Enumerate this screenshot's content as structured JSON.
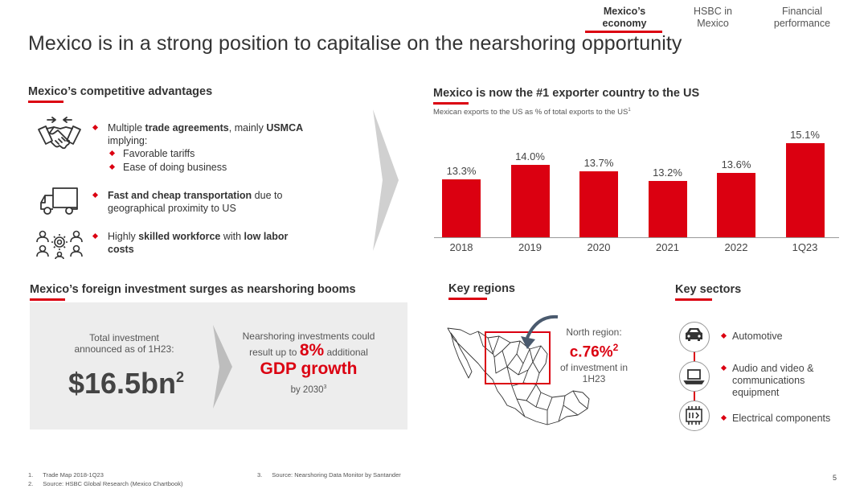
{
  "nav": {
    "items": [
      {
        "label_1": "Mexico’s",
        "label_2": "economy"
      },
      {
        "label_1": "HSBC in",
        "label_2": "Mexico"
      },
      {
        "label_1": "Financial",
        "label_2": "performance"
      }
    ],
    "active_index": 0
  },
  "title": "Mexico is in a strong position to capitalise on the nearshoring opportunity",
  "advantages": {
    "heading": "Mexico’s competitive advantages",
    "items": [
      {
        "icon": "handshake-icon",
        "line1_pre": "Multiple ",
        "line1_b1": "trade agreements",
        "line1_mid": ", mainly ",
        "line1_b2": "USMCA",
        "line2": "implying:",
        "subs": [
          "Favorable tariffs",
          "Ease of doing business"
        ]
      },
      {
        "icon": "truck-icon",
        "line1_b1": "Fast and cheap transportation",
        "line1_post": " due to",
        "line2": "geographical proximity to US"
      },
      {
        "icon": "workforce-icon",
        "line1_pre": "Highly ",
        "line1_b1": "skilled workforce",
        "line1_mid": " with ",
        "line1_b2": "low labor",
        "line2_b": "costs"
      }
    ]
  },
  "chart_section": {
    "heading": "Mexico is now the #1 exporter country to the US",
    "subtitle": "Mexican exports to the US as % of total exports to the US",
    "subtitle_sup": "1"
  },
  "chart_data": {
    "type": "bar",
    "categories": [
      "2018",
      "2019",
      "2020",
      "2021",
      "2022",
      "1Q23"
    ],
    "values": [
      13.3,
      14.0,
      13.7,
      13.2,
      13.6,
      15.1
    ],
    "value_labels": [
      "13.3%",
      "14.0%",
      "13.7%",
      "13.2%",
      "13.6%",
      "15.1%"
    ],
    "title": "Mexico is now the #1 exporter country to the US",
    "ylabel": "",
    "bar_color": "#db0011"
  },
  "investment": {
    "heading": "Mexico’s foreign investment surges as nearshoring booms",
    "total_label_1": "Total investment",
    "total_label_2": "announced as of 1H23:",
    "total_value": "$16.5bn",
    "total_sup": "2",
    "near_1": "Nearshoring investments could",
    "near_2_pre": "result up to ",
    "near_2_big": "8%",
    "near_2_post": " additional",
    "near_3": "GDP growth",
    "near_4": "by 2030",
    "near_4_sup": "3"
  },
  "regions": {
    "heading": "Key regions",
    "line1": "North region:",
    "value": "c.76%",
    "value_sup": "2",
    "line3": "of investment in",
    "line4": "1H23"
  },
  "sectors": {
    "heading": "Key sectors",
    "items": [
      {
        "icon": "car-icon",
        "label": "Automotive"
      },
      {
        "icon": "laptop-icon",
        "label_1": "Audio and video &",
        "label_2": "communications",
        "label_3": "equipment"
      },
      {
        "icon": "circuit-icon",
        "label": "Electrical components"
      }
    ]
  },
  "footnotes": {
    "n1": "1.",
    "t1": "Trade Map 2018-1Q23",
    "n2": "2.",
    "t2": "Source: HSBC Global Research (Mexico Chartbook)",
    "n3": "3.",
    "t3": "Source: Nearshoring Data Monitor by Santander"
  },
  "page_number": "5",
  "colors": {
    "accent": "#db0011",
    "text": "#333333",
    "panel": "#ededed"
  }
}
